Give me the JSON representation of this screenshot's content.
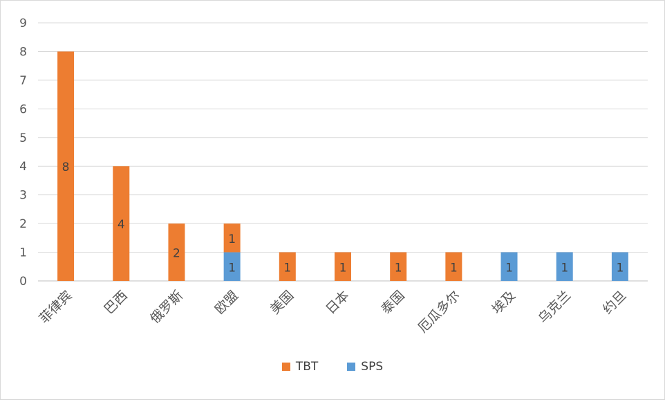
{
  "chart_data": {
    "type": "bar",
    "stacked": true,
    "categories": [
      "菲律宾",
      "巴西",
      "俄罗斯",
      "欧盟",
      "美国",
      "日本",
      "泰国",
      "厄瓜多尔",
      "埃及",
      "乌克兰",
      "约旦"
    ],
    "series": [
      {
        "name": "SPS",
        "color": "#5b9bd5",
        "values": [
          0,
          0,
          0,
          1,
          0,
          0,
          0,
          0,
          1,
          1,
          1
        ]
      },
      {
        "name": "TBT",
        "color": "#ed7d31",
        "values": [
          8,
          4,
          2,
          1,
          1,
          1,
          1,
          1,
          0,
          0,
          0
        ]
      }
    ],
    "legend_order": [
      "TBT",
      "SPS"
    ],
    "yticks": [
      "0",
      "1",
      "2",
      "3",
      "4",
      "5",
      "6",
      "7",
      "8",
      "9"
    ],
    "ylim": [
      0,
      9
    ],
    "grid": true,
    "legend_position": "bottom",
    "data_labels": true
  }
}
